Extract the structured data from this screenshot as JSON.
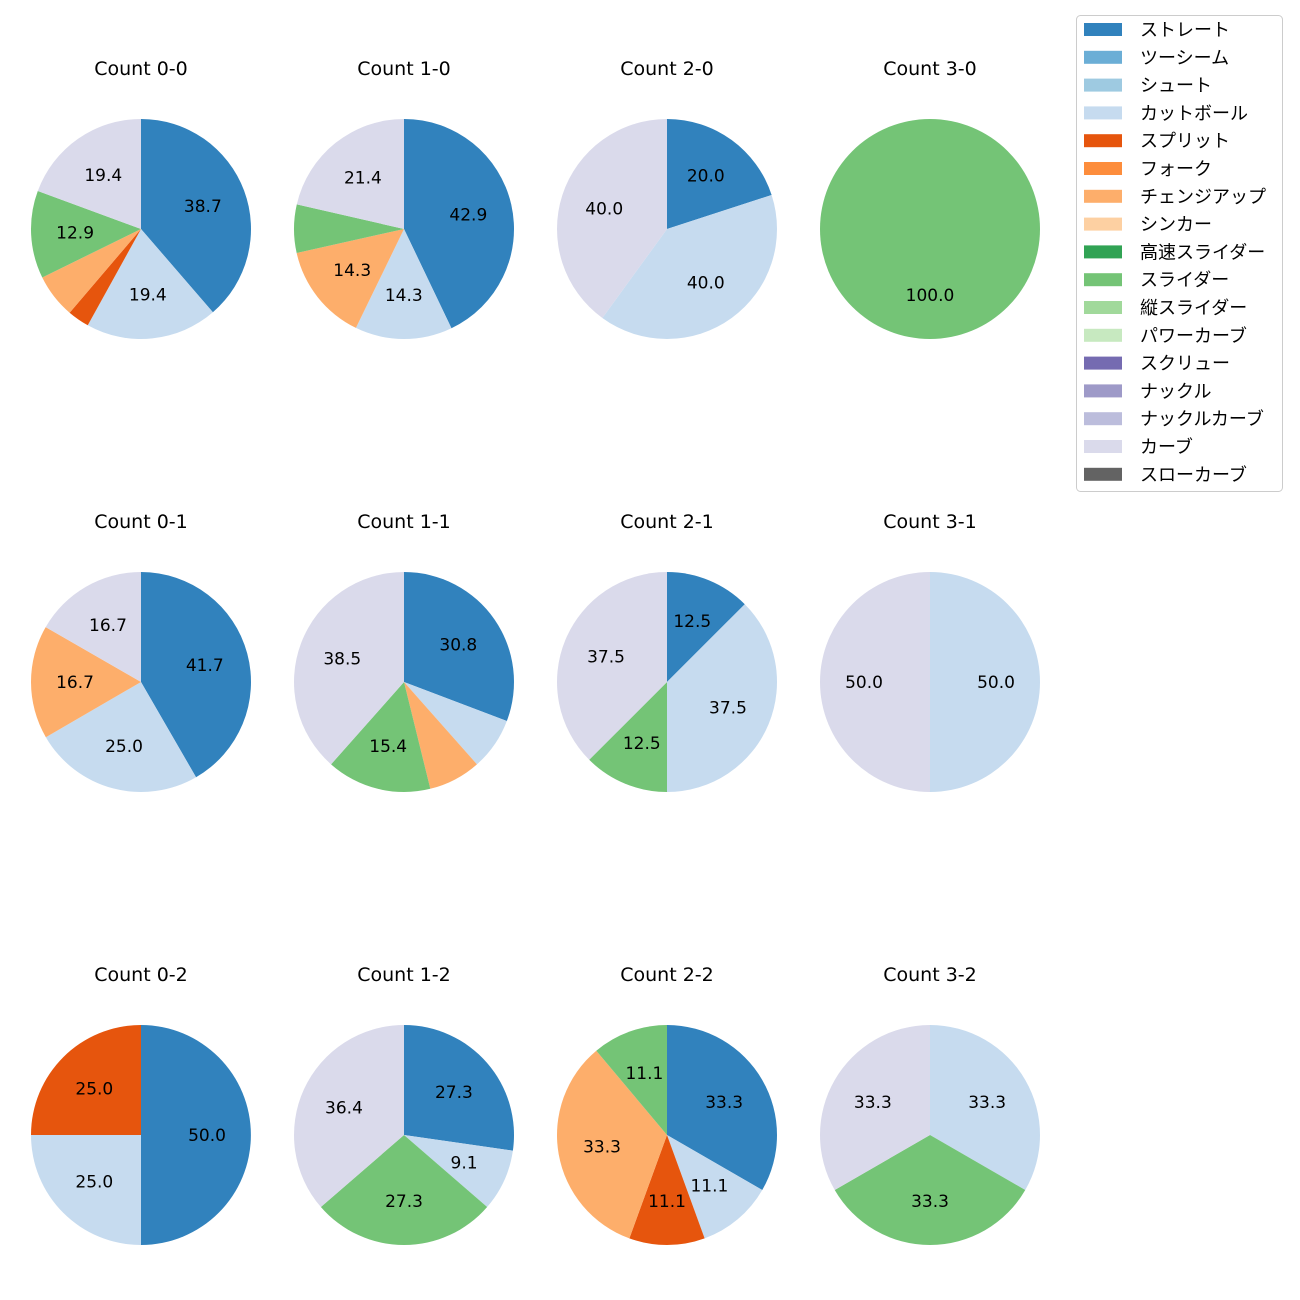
{
  "chart_data": {
    "type": "pie",
    "start": "top, clockwise",
    "legend": {
      "placement": "top-right",
      "entries": [
        {
          "name": "ストレート",
          "color": "#3182bd"
        },
        {
          "name": "ツーシーム",
          "color": "#6baed6"
        },
        {
          "name": "シュート",
          "color": "#9ecae1"
        },
        {
          "name": "カットボール",
          "color": "#c6dbef"
        },
        {
          "name": "スプリット",
          "color": "#e6550d"
        },
        {
          "name": "フォーク",
          "color": "#fd8d3c"
        },
        {
          "name": "チェンジアップ",
          "color": "#fdae6b"
        },
        {
          "name": "シンカー",
          "color": "#fdd0a2"
        },
        {
          "name": "高速スライダー",
          "color": "#31a354"
        },
        {
          "name": "スライダー",
          "color": "#74c476"
        },
        {
          "name": "縦スライダー",
          "color": "#a1d99b"
        },
        {
          "name": "パワーカーブ",
          "color": "#c7e9c0"
        },
        {
          "name": "スクリュー",
          "color": "#756bb1"
        },
        {
          "name": "ナックル",
          "color": "#9e9ac8"
        },
        {
          "name": "ナックルカーブ",
          "color": "#bcbddc"
        },
        {
          "name": "カーブ",
          "color": "#dadaeb"
        },
        {
          "name": "スローカーブ",
          "color": "#636363"
        }
      ]
    },
    "pies": [
      {
        "title": "Count 0-0",
        "slices": [
          [
            "ストレート",
            38.7
          ],
          [
            "カットボール",
            19.4
          ],
          [
            "スプリット",
            3.2
          ],
          [
            "チェンジアップ",
            6.5
          ],
          [
            "スライダー",
            12.9
          ],
          [
            "カーブ",
            19.4
          ]
        ]
      },
      {
        "title": "Count 1-0",
        "slices": [
          [
            "ストレート",
            42.9
          ],
          [
            "カットボール",
            14.3
          ],
          [
            "チェンジアップ",
            14.3
          ],
          [
            "スライダー",
            7.1
          ],
          [
            "カーブ",
            21.4
          ]
        ]
      },
      {
        "title": "Count 2-0",
        "slices": [
          [
            "ストレート",
            20.0
          ],
          [
            "カットボール",
            40.0
          ],
          [
            "カーブ",
            40.0
          ]
        ]
      },
      {
        "title": "Count 3-0",
        "slices": [
          [
            "スライダー",
            100.0
          ]
        ]
      },
      {
        "title": "Count 0-1",
        "slices": [
          [
            "ストレート",
            41.7
          ],
          [
            "カットボール",
            25.0
          ],
          [
            "チェンジアップ",
            16.7
          ],
          [
            "カーブ",
            16.7
          ]
        ]
      },
      {
        "title": "Count 1-1",
        "slices": [
          [
            "ストレート",
            30.8
          ],
          [
            "カットボール",
            7.7
          ],
          [
            "チェンジアップ",
            7.7
          ],
          [
            "スライダー",
            15.4
          ],
          [
            "カーブ",
            38.5
          ]
        ]
      },
      {
        "title": "Count 2-1",
        "slices": [
          [
            "ストレート",
            12.5
          ],
          [
            "カットボール",
            37.5
          ],
          [
            "スライダー",
            12.5
          ],
          [
            "カーブ",
            37.5
          ]
        ]
      },
      {
        "title": "Count 3-1",
        "slices": [
          [
            "カットボール",
            50.0
          ],
          [
            "カーブ",
            50.0
          ]
        ]
      },
      {
        "title": "Count 0-2",
        "slices": [
          [
            "ストレート",
            50.0
          ],
          [
            "カットボール",
            25.0
          ],
          [
            "スプリット",
            25.0
          ]
        ]
      },
      {
        "title": "Count 1-2",
        "slices": [
          [
            "ストレート",
            27.3
          ],
          [
            "カットボール",
            9.1
          ],
          [
            "スライダー",
            27.3
          ],
          [
            "カーブ",
            36.4
          ]
        ]
      },
      {
        "title": "Count 2-2",
        "slices": [
          [
            "ストレート",
            33.3
          ],
          [
            "カットボール",
            11.1
          ],
          [
            "スプリット",
            11.1
          ],
          [
            "チェンジアップ",
            33.3
          ],
          [
            "スライダー",
            11.1
          ]
        ]
      },
      {
        "title": "Count 3-2",
        "slices": [
          [
            "カットボール",
            33.3
          ],
          [
            "スライダー",
            33.3
          ],
          [
            "カーブ",
            33.3
          ]
        ]
      }
    ],
    "label_min_percent": 8
  }
}
